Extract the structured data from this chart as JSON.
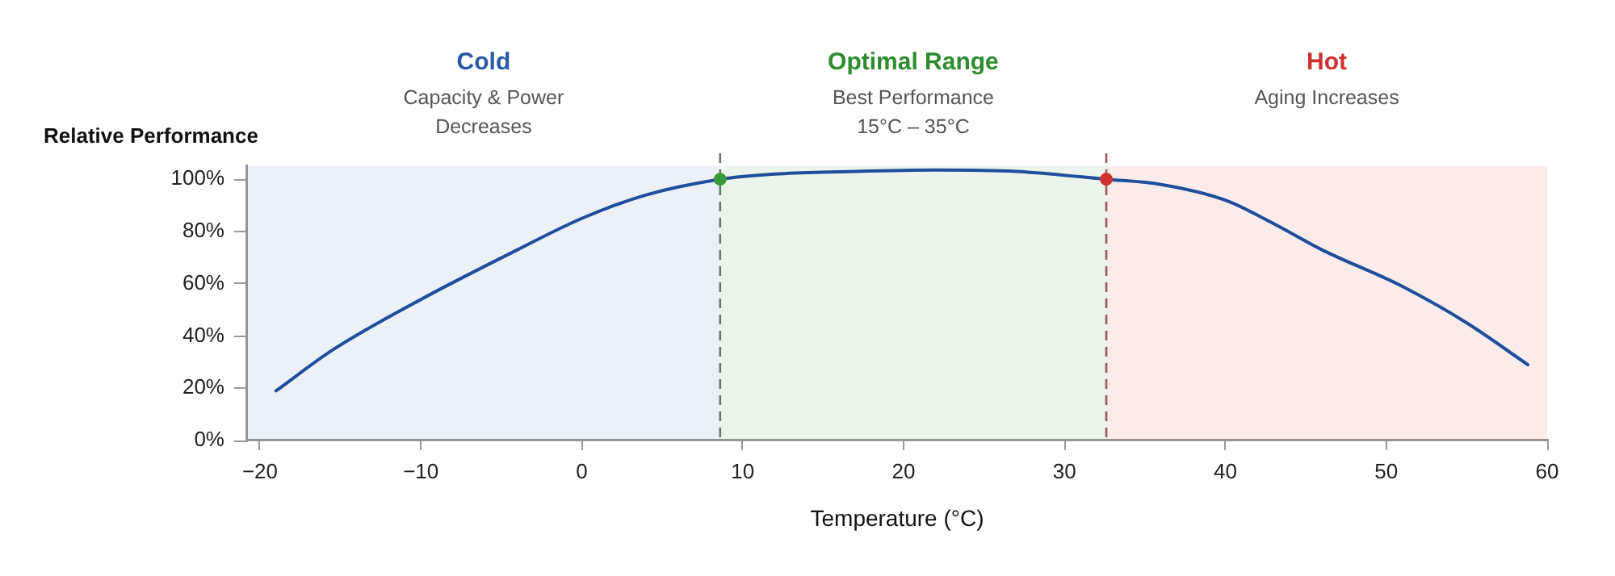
{
  "chart_data": {
    "type": "line",
    "xlabel": "Temperature (°C)",
    "ylabel": "Relative Performance",
    "xlim": [
      -20.8,
      60
    ],
    "xticks": [
      {
        "value": -20,
        "label": "−20"
      },
      {
        "value": -10,
        "label": "−10"
      },
      0,
      10,
      20,
      30,
      40,
      50,
      60
    ],
    "ylim": [
      0,
      105
    ],
    "yticks": [
      {
        "value": 0,
        "label": "0%"
      },
      {
        "value": 20,
        "label": "20%"
      },
      {
        "value": 40,
        "label": "40%"
      },
      {
        "value": 60,
        "label": "60%"
      },
      {
        "value": 80,
        "label": "80%"
      },
      {
        "value": 100,
        "label": "100%"
      }
    ],
    "grid": false,
    "legend": false,
    "marker": "none",
    "line_style": "solid",
    "series": [
      {
        "color": "#1f4e9c",
        "x": [
          -19,
          -15.4,
          -10,
          -4,
          0,
          4,
          8.6,
          12,
          17,
          22,
          27,
          32.6,
          36,
          40,
          43,
          46,
          51,
          55,
          58.8
        ],
        "values": [
          19,
          35,
          54,
          73,
          85,
          94,
          100,
          102,
          103,
          103.5,
          103,
          100,
          98,
          92,
          83,
          73,
          59,
          45,
          29
        ]
      },
      {
        "type": "scatter",
        "marker": "circle",
        "colors": [
          "#3a9a3a",
          "#d03030"
        ],
        "x": [
          8.6,
          32.6
        ],
        "values": [
          100,
          100
        ]
      }
    ],
    "bands": [
      {
        "axis": "x",
        "from": -20.8,
        "to": 8.6,
        "label": "Cold",
        "color": "#2a5aa8"
      },
      {
        "axis": "x",
        "from": 8.6,
        "to": 32.6,
        "label": "Optimal Range",
        "color": "#2e8b2e"
      },
      {
        "axis": "x",
        "from": 32.6,
        "to": 60,
        "label": "Hot",
        "color": "#d03030"
      }
    ],
    "ref_lines": [
      {
        "axis": "x",
        "value": 8.6,
        "color": "#667766",
        "line_style": "dashed"
      },
      {
        "axis": "x",
        "value": 32.6,
        "color": "#a05555",
        "line_style": "dashed"
      }
    ],
    "annotations": [
      "Capacity & Power Decreases",
      "Best Performance 15°C – 35°C",
      "Aging Increases"
    ]
  }
}
